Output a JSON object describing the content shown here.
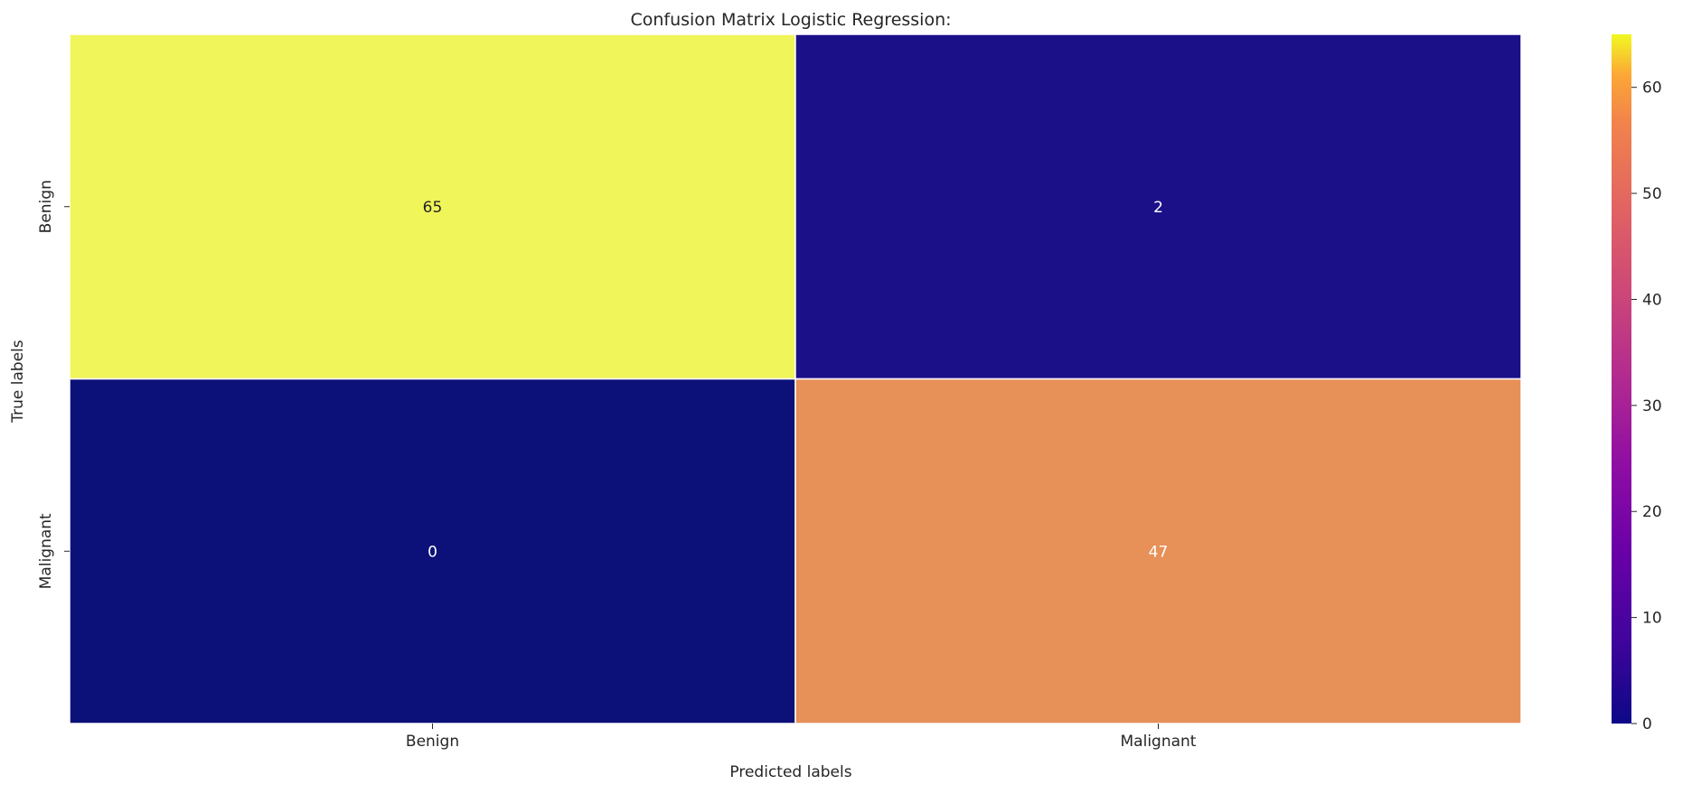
{
  "chart_data": {
    "type": "heatmap",
    "title": "Confusion Matrix Logistic Regression:",
    "xlabel": "Predicted labels",
    "ylabel": "True labels",
    "x_categories": [
      "Benign",
      "Malignant"
    ],
    "y_categories": [
      "Benign",
      "Malignant"
    ],
    "values": [
      [
        65,
        2
      ],
      [
        0,
        47
      ]
    ],
    "annotations": [
      [
        "65",
        "2"
      ],
      [
        "0",
        "47"
      ]
    ],
    "colormap": "plasma",
    "colorbar": {
      "min": 0,
      "max": 65,
      "ticks": [
        0,
        10,
        20,
        30,
        40,
        50,
        60
      ],
      "tick_labels": [
        "0",
        "10",
        "20",
        "30",
        "40",
        "50",
        "60"
      ]
    },
    "cell_colors": [
      [
        "#f0f55a",
        "#1c1089"
      ],
      [
        "#0b1178",
        "#e79058"
      ]
    ],
    "annotation_colors": [
      [
        "#262626",
        "#ffffff"
      ],
      [
        "#ffffff",
        "#ffffff"
      ]
    ],
    "grid": false,
    "legend": "none"
  }
}
